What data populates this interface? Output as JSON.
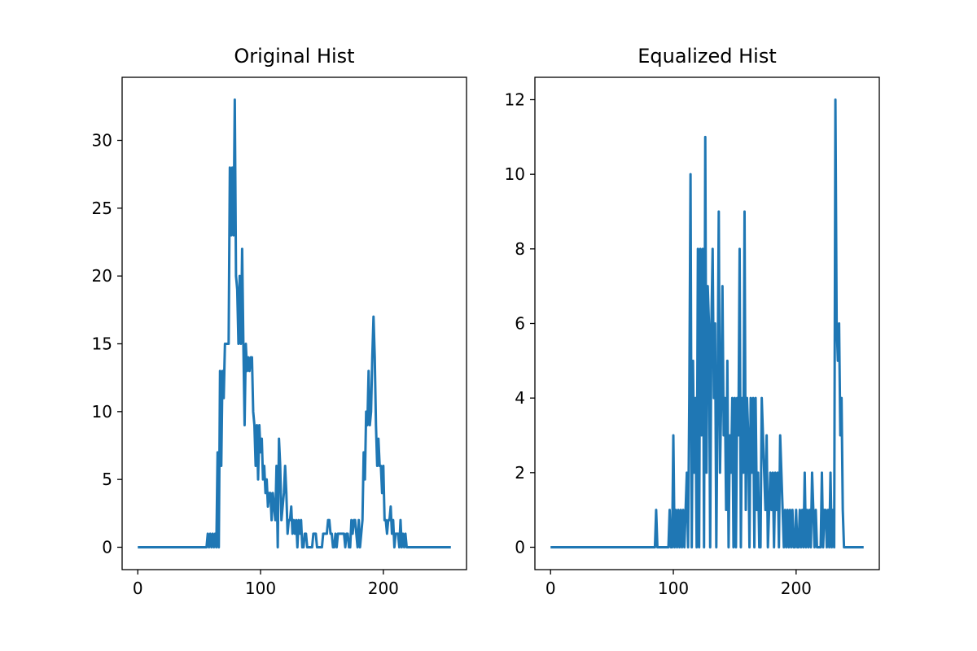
{
  "chart_data": [
    {
      "type": "line",
      "title": "Original Hist",
      "x": [
        0,
        1,
        2,
        3,
        4,
        5,
        6,
        7,
        8,
        9,
        10,
        11,
        12,
        13,
        14,
        15,
        16,
        17,
        18,
        19,
        20,
        21,
        22,
        23,
        24,
        25,
        26,
        27,
        28,
        29,
        30,
        31,
        32,
        33,
        34,
        35,
        36,
        37,
        38,
        39,
        40,
        41,
        42,
        43,
        44,
        45,
        46,
        47,
        48,
        49,
        50,
        51,
        52,
        53,
        54,
        55,
        56,
        57,
        58,
        59,
        60,
        61,
        62,
        63,
        64,
        65,
        66,
        67,
        68,
        69,
        70,
        71,
        72,
        73,
        74,
        75,
        76,
        77,
        78,
        79,
        80,
        81,
        82,
        83,
        84,
        85,
        86,
        87,
        88,
        89,
        90,
        91,
        92,
        93,
        94,
        95,
        96,
        97,
        98,
        99,
        100,
        101,
        102,
        103,
        104,
        105,
        106,
        107,
        108,
        109,
        110,
        111,
        112,
        113,
        114,
        115,
        116,
        117,
        118,
        119,
        120,
        121,
        122,
        123,
        124,
        125,
        126,
        127,
        128,
        129,
        130,
        131,
        132,
        133,
        134,
        135,
        136,
        137,
        138,
        139,
        140,
        141,
        142,
        143,
        144,
        145,
        146,
        147,
        148,
        149,
        150,
        151,
        152,
        153,
        154,
        155,
        156,
        157,
        158,
        159,
        160,
        161,
        162,
        163,
        164,
        165,
        166,
        167,
        168,
        169,
        170,
        171,
        172,
        173,
        174,
        175,
        176,
        177,
        178,
        179,
        180,
        181,
        182,
        183,
        184,
        185,
        186,
        187,
        188,
        189,
        190,
        191,
        192,
        193,
        194,
        195,
        196,
        197,
        198,
        199,
        200,
        201,
        202,
        203,
        204,
        205,
        206,
        207,
        208,
        209,
        210,
        211,
        212,
        213,
        214,
        215,
        216,
        217,
        218,
        219,
        220,
        221,
        222,
        223,
        224,
        225,
        226,
        227,
        228,
        229,
        230,
        231,
        232,
        233,
        234,
        235,
        236,
        237,
        238,
        239,
        240,
        241,
        242,
        243,
        244,
        245,
        246,
        247,
        248,
        249,
        250,
        251,
        252,
        253,
        254,
        255
      ],
      "values": [
        0,
        0,
        0,
        0,
        0,
        0,
        0,
        0,
        0,
        0,
        0,
        0,
        0,
        0,
        0,
        0,
        0,
        0,
        0,
        0,
        0,
        0,
        0,
        0,
        0,
        0,
        0,
        0,
        0,
        0,
        0,
        0,
        0,
        0,
        0,
        0,
        0,
        0,
        0,
        0,
        0,
        0,
        0,
        0,
        0,
        0,
        0,
        0,
        0,
        0,
        0,
        0,
        0,
        0,
        0,
        0,
        0,
        1,
        0,
        1,
        0,
        1,
        0,
        1,
        0,
        7,
        0,
        13,
        6,
        13,
        11,
        15,
        15,
        15,
        15,
        28,
        23,
        28,
        23,
        33,
        20,
        19,
        15,
        20,
        15,
        22,
        15,
        9,
        15,
        13,
        14,
        13,
        14,
        14,
        10,
        9,
        6,
        9,
        5,
        9,
        7,
        8,
        5,
        6,
        4,
        5,
        3,
        4,
        4,
        2,
        4,
        3,
        2,
        6,
        0,
        8,
        6,
        2,
        3,
        4,
        6,
        4,
        1,
        2,
        2,
        3,
        1,
        2,
        1,
        2,
        0,
        2,
        1,
        2,
        0,
        0,
        1,
        1,
        0,
        0,
        0,
        0,
        0,
        1,
        1,
        1,
        0,
        0,
        0,
        0,
        0,
        1,
        1,
        1,
        1,
        2,
        2,
        1,
        1,
        0,
        0,
        1,
        0,
        1,
        1,
        1,
        1,
        1,
        1,
        0,
        1,
        1,
        0,
        0,
        2,
        1,
        2,
        2,
        1,
        0,
        2,
        0,
        1,
        2,
        7,
        5,
        10,
        9,
        13,
        9,
        10,
        14,
        17,
        14,
        9,
        6,
        8,
        6,
        6,
        4,
        6,
        2,
        2,
        1,
        2,
        2,
        3,
        1,
        2,
        0,
        1,
        1,
        1,
        0,
        2,
        0,
        1,
        0,
        1,
        0,
        0,
        0,
        0,
        0,
        0,
        0,
        0,
        0,
        0,
        0,
        0,
        0,
        0,
        0,
        0,
        0,
        0,
        0,
        0,
        0,
        0,
        0,
        0,
        0,
        0,
        0,
        0,
        0,
        0,
        0,
        0,
        0,
        0,
        0,
        0,
        0
      ],
      "color": "#1f77b4",
      "xlim": [
        -12.75,
        267.75
      ],
      "xticks": [
        0,
        100,
        200
      ],
      "ylim": [
        -1.65,
        34.65
      ],
      "yticks": [
        0,
        5,
        10,
        15,
        20,
        25,
        30
      ]
    },
    {
      "type": "line",
      "title": "Equalized Hist",
      "x": [
        0,
        1,
        2,
        3,
        4,
        5,
        6,
        7,
        8,
        9,
        10,
        11,
        12,
        13,
        14,
        15,
        16,
        17,
        18,
        19,
        20,
        21,
        22,
        23,
        24,
        25,
        26,
        27,
        28,
        29,
        30,
        31,
        32,
        33,
        34,
        35,
        36,
        37,
        38,
        39,
        40,
        41,
        42,
        43,
        44,
        45,
        46,
        47,
        48,
        49,
        50,
        51,
        52,
        53,
        54,
        55,
        56,
        57,
        58,
        59,
        60,
        61,
        62,
        63,
        64,
        65,
        66,
        67,
        68,
        69,
        70,
        71,
        72,
        73,
        74,
        75,
        76,
        77,
        78,
        79,
        80,
        81,
        82,
        83,
        84,
        85,
        86,
        87,
        88,
        89,
        90,
        91,
        92,
        93,
        94,
        95,
        96,
        97,
        98,
        99,
        100,
        101,
        102,
        103,
        104,
        105,
        106,
        107,
        108,
        109,
        110,
        111,
        112,
        113,
        114,
        115,
        116,
        117,
        118,
        119,
        120,
        121,
        122,
        123,
        124,
        125,
        126,
        127,
        128,
        129,
        130,
        131,
        132,
        133,
        134,
        135,
        136,
        137,
        138,
        139,
        140,
        141,
        142,
        143,
        144,
        145,
        146,
        147,
        148,
        149,
        150,
        151,
        152,
        153,
        154,
        155,
        156,
        157,
        158,
        159,
        160,
        161,
        162,
        163,
        164,
        165,
        166,
        167,
        168,
        169,
        170,
        171,
        172,
        173,
        174,
        175,
        176,
        177,
        178,
        179,
        180,
        181,
        182,
        183,
        184,
        185,
        186,
        187,
        188,
        189,
        190,
        191,
        192,
        193,
        194,
        195,
        196,
        197,
        198,
        199,
        200,
        201,
        202,
        203,
        204,
        205,
        206,
        207,
        208,
        209,
        210,
        211,
        212,
        213,
        214,
        215,
        216,
        217,
        218,
        219,
        220,
        221,
        222,
        223,
        224,
        225,
        226,
        227,
        228,
        229,
        230,
        231,
        232,
        233,
        234,
        235,
        236,
        237,
        238,
        239,
        240,
        241,
        242,
        243,
        244,
        245,
        246,
        247,
        248,
        249,
        250,
        251,
        252,
        253,
        254,
        255
      ],
      "values": [
        0,
        0,
        0,
        0,
        0,
        0,
        0,
        0,
        0,
        0,
        0,
        0,
        0,
        0,
        0,
        0,
        0,
        0,
        0,
        0,
        0,
        0,
        0,
        0,
        0,
        0,
        0,
        0,
        0,
        0,
        0,
        0,
        0,
        0,
        0,
        0,
        0,
        0,
        0,
        0,
        0,
        0,
        0,
        0,
        0,
        0,
        0,
        0,
        0,
        0,
        0,
        0,
        0,
        0,
        0,
        0,
        0,
        0,
        0,
        0,
        0,
        0,
        0,
        0,
        0,
        0,
        0,
        0,
        0,
        0,
        0,
        0,
        0,
        0,
        0,
        0,
        0,
        0,
        0,
        0,
        0,
        0,
        0,
        0,
        0,
        0,
        1,
        0,
        0,
        0,
        0,
        0,
        0,
        0,
        0,
        0,
        0,
        1,
        0,
        0,
        3,
        0,
        1,
        0,
        1,
        0,
        1,
        0,
        1,
        0,
        1,
        2,
        0,
        4,
        10,
        0,
        5,
        2,
        4,
        0,
        8,
        0,
        8,
        3,
        8,
        0,
        11,
        2,
        7,
        6,
        0,
        6,
        8,
        4,
        6,
        0,
        4,
        9,
        2,
        4,
        7,
        3,
        4,
        1,
        5,
        0,
        3,
        2,
        4,
        0,
        4,
        0,
        4,
        3,
        8,
        0,
        4,
        2,
        9,
        1,
        4,
        3,
        0,
        4,
        2,
        4,
        0,
        4,
        1,
        2,
        0,
        0,
        4,
        3,
        2,
        1,
        3,
        0,
        1,
        2,
        1,
        2,
        0,
        2,
        1,
        2,
        0,
        3,
        2,
        1,
        0,
        1,
        0,
        1,
        0,
        1,
        0,
        1,
        0,
        0,
        1,
        0,
        0,
        1,
        0,
        1,
        0,
        2,
        0,
        1,
        0,
        1,
        0,
        2,
        1,
        0,
        1,
        0,
        0,
        0,
        0,
        2,
        0,
        1,
        1,
        0,
        1,
        0,
        2,
        0,
        1,
        0,
        12,
        6,
        5,
        6,
        3,
        4,
        1,
        0,
        0,
        0,
        0,
        0,
        0,
        0,
        0,
        0,
        0,
        0,
        0,
        0,
        0,
        0,
        0,
        0
      ],
      "color": "#1f77b4",
      "xlim": [
        -12.75,
        267.75
      ],
      "xticks": [
        0,
        100,
        200
      ],
      "ylim": [
        -0.6,
        12.6
      ],
      "yticks": [
        0,
        2,
        4,
        6,
        8,
        10,
        12
      ]
    }
  ]
}
